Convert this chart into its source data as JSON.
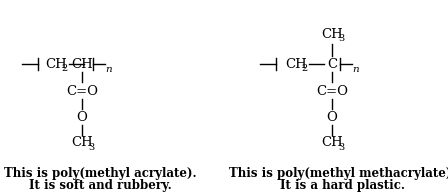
{
  "background_color": "#ffffff",
  "figsize": [
    4.48,
    1.96
  ],
  "dpi": 100,
  "left": {
    "label1": "This is poly(methyl acrylate).",
    "label2": "It is soft and rubbery."
  },
  "right": {
    "top_group": "CH",
    "top_sub": "3",
    "label1": "This is poly(methyl methacrylate).",
    "label2": "It is a hard plastic."
  },
  "font_family": "DejaVu Serif",
  "fs_main": 9.5,
  "fs_sub": 7,
  "fs_label": 8.5,
  "fs_n": 7.5,
  "text_color": "#000000",
  "line_color": "#000000",
  "lw": 1.0
}
